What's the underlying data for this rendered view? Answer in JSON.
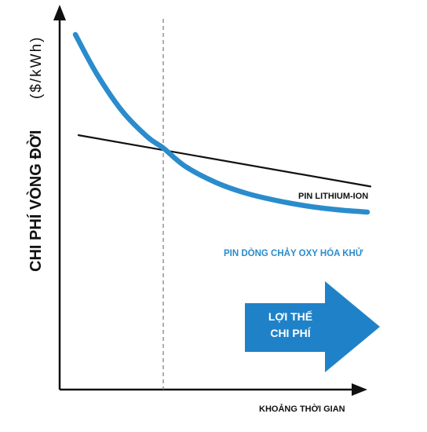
{
  "chart_data": {
    "type": "line",
    "ylabel_main": "CHI PHÍ VÒNG ĐỜI",
    "ylabel_unit": "($/kWh)",
    "xlabel": "KHOẢNG THỜI GIAN",
    "x_ticks": "none",
    "y_ticks": "none",
    "grid": false,
    "xlim": [
      0,
      10
    ],
    "ylim": [
      0,
      10
    ],
    "crossover_x": 3.3,
    "series": [
      {
        "name": "PIN LITHIUM-ION",
        "color": "#111111",
        "x": [
          0.6,
          9.9
        ],
        "y": [
          6.95,
          5.55
        ]
      },
      {
        "name": "PIN DÒNG CHẢY OXY HÓA KHỬ",
        "color": "#2a8ccc",
        "x": [
          0.5,
          1.2,
          2.0,
          2.8,
          3.3,
          4.0,
          5.0,
          6.0,
          7.0,
          8.0,
          9.0,
          9.8
        ],
        "y": [
          9.7,
          8.6,
          7.6,
          6.9,
          6.6,
          6.1,
          5.65,
          5.35,
          5.15,
          5.0,
          4.9,
          4.85
        ]
      }
    ],
    "annotation": {
      "lines": [
        "LỢI THẾ",
        "CHI PHÍ"
      ],
      "color": "#1f82c8"
    }
  }
}
